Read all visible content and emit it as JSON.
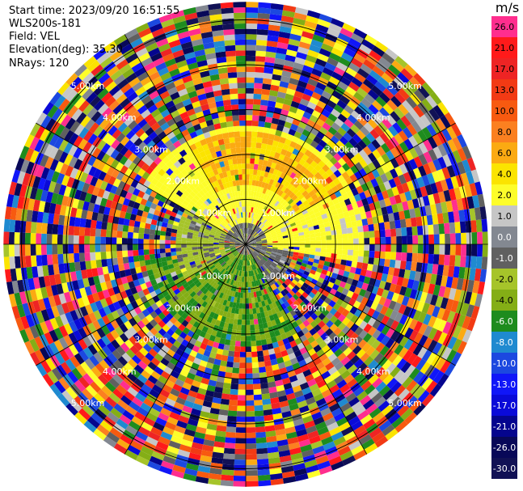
{
  "header": {
    "start_time": "Start time: 2023/09/20 16:51:55",
    "instrument": "WLS200s-181",
    "field": "Field: VEL",
    "elevation": "Elevation(deg): 35.30",
    "nrays": "NRays: 120"
  },
  "colorbar": {
    "unit": "m/s",
    "levels": [
      {
        "label": "26.0",
        "color": "#ff2e8e"
      },
      {
        "label": "21.0",
        "color": "#ff1a1a"
      },
      {
        "label": "17.0",
        "color": "#ee2424"
      },
      {
        "label": "13.0",
        "color": "#f23a14"
      },
      {
        "label": "10.0",
        "color": "#f75a10"
      },
      {
        "label": "8.0",
        "color": "#fb8020"
      },
      {
        "label": "6.0",
        "color": "#fbaa12"
      },
      {
        "label": "4.0",
        "color": "#fbe400"
      },
      {
        "label": "2.0",
        "color": "#fdfd2a"
      },
      {
        "label": "1.0",
        "color": "#c6c6c6"
      },
      {
        "label": "0.0",
        "color": "#838891"
      },
      {
        "label": "-1.0",
        "color": "#606060"
      },
      {
        "label": "-2.0",
        "color": "#a6c42a"
      },
      {
        "label": "-4.0",
        "color": "#84ae16"
      },
      {
        "label": "-6.0",
        "color": "#1e8c1e"
      },
      {
        "label": "-8.0",
        "color": "#1f8ad0"
      },
      {
        "label": "-10.0",
        "color": "#1c48e0"
      },
      {
        "label": "-13.0",
        "color": "#1016f8"
      },
      {
        "label": "-17.0",
        "color": "#0a0ad8"
      },
      {
        "label": "-21.0",
        "color": "#05058e"
      },
      {
        "label": "-26.0",
        "color": "#080858"
      },
      {
        "label": "-30.0",
        "color": "#111155"
      }
    ]
  },
  "chart_data": {
    "type": "heatmap",
    "projection": "polar-ppi",
    "field": "VEL",
    "units": "m/s",
    "n_rays": 120,
    "range_rings_km": [
      1.0,
      2.0,
      3.0,
      4.0,
      5.0
    ],
    "range_ring_labels": [
      "1.00km",
      "2.00km",
      "3.00km",
      "4.00km",
      "5.00km"
    ],
    "azimuth_spokes_deg": [
      0,
      30,
      60,
      90,
      120,
      150,
      180,
      210,
      240,
      270,
      300,
      330
    ],
    "max_range_km": 5.4,
    "velocity_regions": [
      {
        "description": "inner core near radar",
        "range_km": [
          0,
          1.1
        ],
        "azimuth_deg": [
          0,
          360
        ],
        "value": -1.0
      },
      {
        "description": "receding band north-east",
        "range_km": [
          0.5,
          2.6
        ],
        "azimuth_deg": [
          300,
          100
        ],
        "value": 2.0
      },
      {
        "description": "strong receding north",
        "range_km": [
          1.3,
          2.5
        ],
        "azimuth_deg": [
          330,
          60
        ],
        "value": 5.0
      },
      {
        "description": "approaching south-west",
        "range_km": [
          0.3,
          2.3
        ],
        "azimuth_deg": [
          150,
          260
        ],
        "value": -5.0
      },
      {
        "description": "weak west",
        "range_km": [
          0.5,
          1.6
        ],
        "azimuth_deg": [
          240,
          300
        ],
        "value": -2.0
      },
      {
        "description": "noise beyond ~2.6 km",
        "range_km": [
          2.6,
          5.4
        ],
        "azimuth_deg": [
          0,
          360
        ],
        "value": null
      }
    ],
    "grid": true
  }
}
